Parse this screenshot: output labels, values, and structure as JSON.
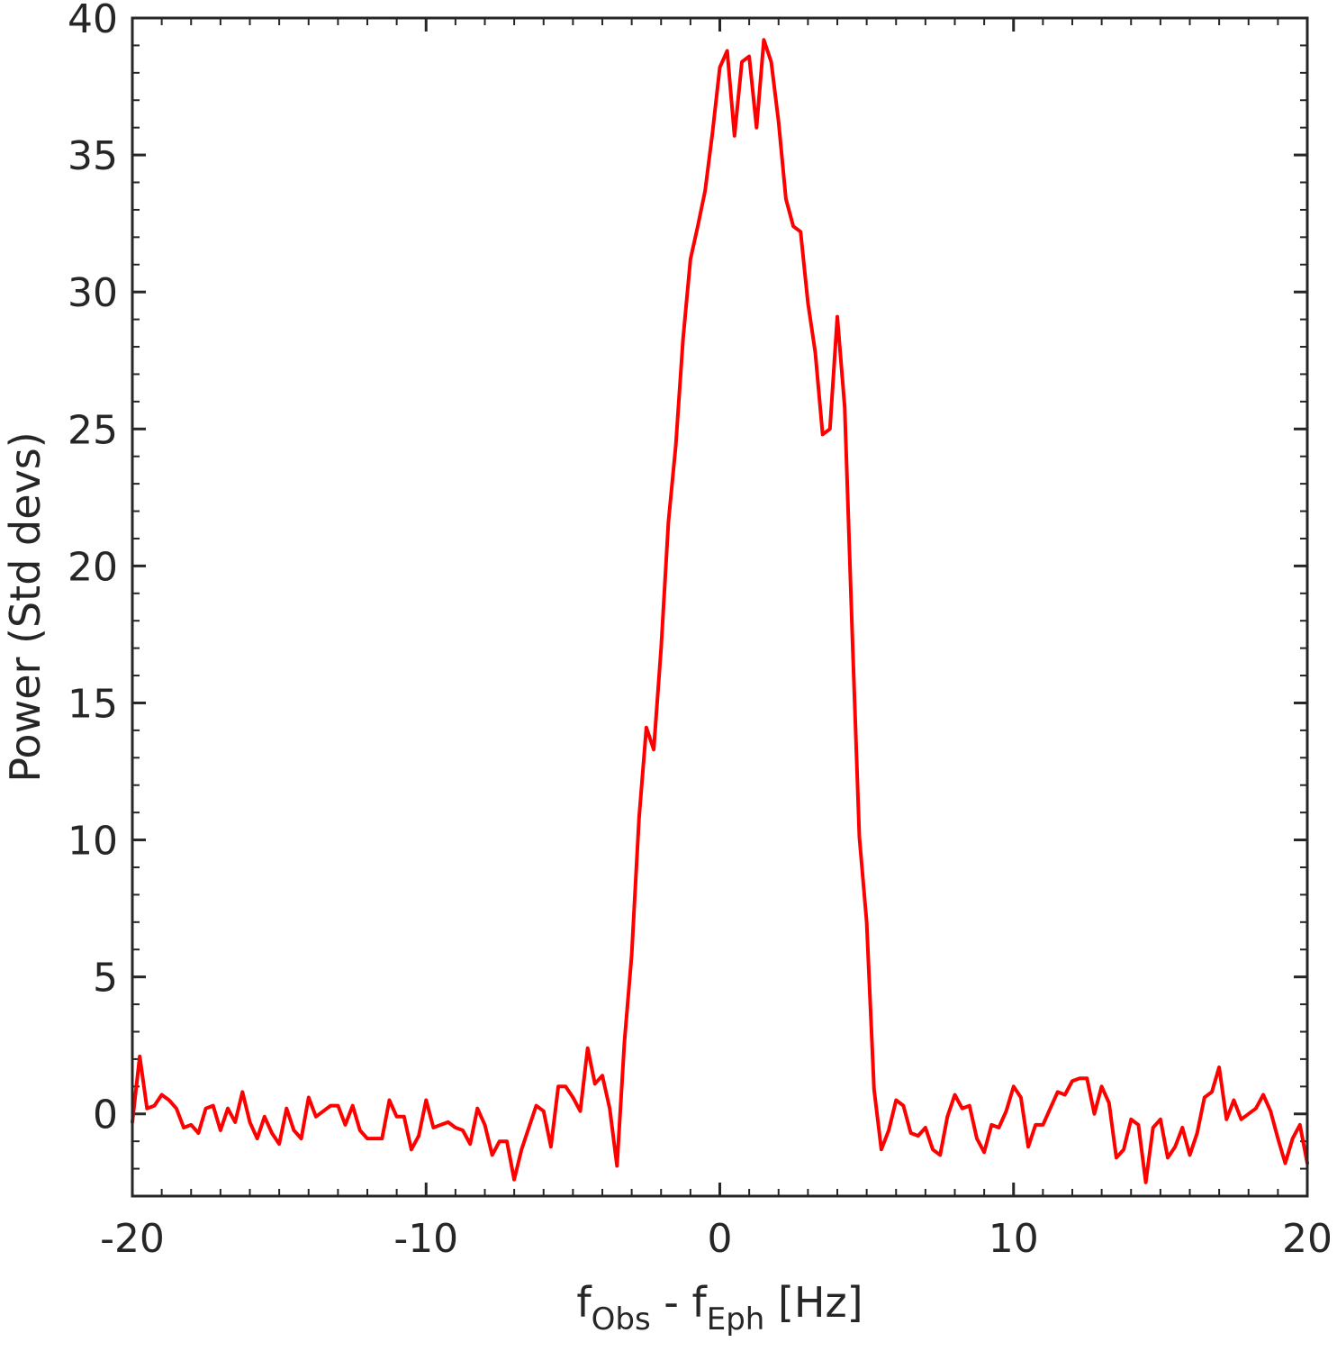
{
  "chart_data": {
    "type": "line",
    "title": "",
    "xlabel": {
      "base1": "f",
      "sub1": "Obs",
      "mid": " - f",
      "sub2": "Eph",
      "tail": " [Hz]"
    },
    "ylabel": "Power (Std devs)",
    "xlim": [
      -20,
      20
    ],
    "ylim": [
      -3,
      40
    ],
    "xticks": [
      -20,
      -10,
      0,
      10,
      20
    ],
    "yticks": [
      0,
      5,
      10,
      15,
      20,
      25,
      30,
      35,
      40
    ],
    "grid": false,
    "line_color": "#ff0000",
    "series": [
      {
        "x": [
          -20,
          -19.75,
          -19.5,
          -19.25,
          -19,
          -18.75,
          -18.5,
          -18.25,
          -18,
          -17.75,
          -17.5,
          -17.25,
          -17,
          -16.75,
          -16.5,
          -16.25,
          -16,
          -15.75,
          -15.5,
          -15.25,
          -15,
          -14.75,
          -14.5,
          -14.25,
          -14,
          -13.75,
          -13.5,
          -13.25,
          -13,
          -12.75,
          -12.5,
          -12.25,
          -12,
          -11.75,
          -11.5,
          -11.25,
          -11,
          -10.75,
          -10.5,
          -10.25,
          -10,
          -9.75,
          -9.5,
          -9.25,
          -9,
          -8.75,
          -8.5,
          -8.25,
          -8,
          -7.75,
          -7.5,
          -7.25,
          -7,
          -6.75,
          -6.5,
          -6.25,
          -6,
          -5.75,
          -5.5,
          -5.25,
          -5,
          -4.75,
          -4.5,
          -4.25,
          -4,
          -3.75,
          -3.5,
          -3.25,
          -3,
          -2.75,
          -2.5,
          -2.25,
          -2,
          -1.75,
          -1.5,
          -1.25,
          -1,
          -0.75,
          -0.5,
          -0.25,
          0,
          0.25,
          0.5,
          0.75,
          1,
          1.25,
          1.5,
          1.75,
          2,
          2.25,
          2.5,
          2.75,
          3,
          3.25,
          3.5,
          3.75,
          4,
          4.25,
          4.5,
          4.75,
          5,
          5.25,
          5.5,
          5.75,
          6,
          6.25,
          6.5,
          6.75,
          7,
          7.25,
          7.5,
          7.75,
          8,
          8.25,
          8.5,
          8.75,
          9,
          9.25,
          9.5,
          9.75,
          10,
          10.25,
          10.5,
          10.75,
          11,
          11.25,
          11.5,
          11.75,
          12,
          12.25,
          12.5,
          12.75,
          13,
          13.25,
          13.5,
          13.75,
          14,
          14.25,
          14.5,
          14.75,
          15,
          15.25,
          15.5,
          15.75,
          16,
          16.25,
          16.5,
          16.75,
          17,
          17.25,
          17.5,
          17.75,
          18,
          18.25,
          18.5,
          18.75,
          19,
          19.25,
          19.5,
          19.75,
          20
        ],
        "y": [
          -0.3,
          2.1,
          0.2,
          0.3,
          0.7,
          0.5,
          0.2,
          -0.5,
          -0.4,
          -0.7,
          0.2,
          0.3,
          -0.6,
          0.2,
          -0.3,
          0.8,
          -0.3,
          -0.9,
          -0.1,
          -0.7,
          -1.1,
          0.2,
          -0.6,
          -0.9,
          0.6,
          -0.1,
          0.1,
          0.3,
          0.3,
          -0.4,
          0.3,
          -0.6,
          -0.9,
          -0.9,
          -0.9,
          0.5,
          -0.1,
          -0.1,
          -1.3,
          -0.8,
          0.5,
          -0.5,
          -0.4,
          -0.3,
          -0.5,
          -0.6,
          -1.1,
          0.2,
          -0.4,
          -1.5,
          -1.0,
          -1.0,
          -2.4,
          -1.3,
          -0.5,
          0.3,
          0.1,
          -1.2,
          1.0,
          1.0,
          0.6,
          0.1,
          2.4,
          1.1,
          1.4,
          0.2,
          -1.9,
          2.6,
          5.8,
          10.8,
          14.1,
          13.3,
          17.0,
          21.6,
          24.4,
          28.3,
          31.2,
          32.4,
          33.7,
          35.8,
          38.2,
          38.8,
          35.7,
          38.4,
          38.6,
          36.0,
          39.2,
          38.4,
          36.2,
          33.4,
          32.4,
          32.2,
          29.6,
          27.8,
          24.8,
          25.0,
          29.1,
          25.8,
          17.8,
          10.1,
          7.0,
          0.9,
          -1.3,
          -0.6,
          0.5,
          0.3,
          -0.7,
          -0.8,
          -0.5,
          -1.3,
          -1.5,
          -0.1,
          0.7,
          0.2,
          0.3,
          -0.9,
          -1.4,
          -0.4,
          -0.5,
          0.1,
          1.0,
          0.6,
          -1.2,
          -0.4,
          -0.4,
          0.2,
          0.8,
          0.7,
          1.2,
          1.3,
          1.3,
          0.0,
          1.0,
          0.4,
          -1.6,
          -1.3,
          -0.2,
          -0.4,
          -2.5,
          -0.5,
          -0.2,
          -1.6,
          -1.2,
          -0.5,
          -1.5,
          -0.7,
          0.6,
          0.8,
          1.7,
          -0.2,
          0.5,
          -0.2,
          0.0,
          0.2,
          0.7,
          0.1,
          -0.9,
          -1.8,
          -0.9,
          -0.4,
          -1.8
        ]
      }
    ]
  }
}
